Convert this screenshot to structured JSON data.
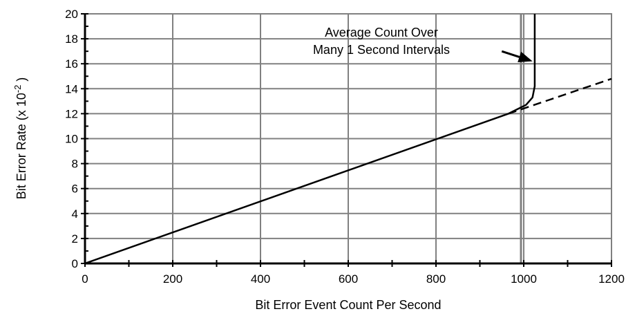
{
  "chart_data": {
    "type": "line",
    "xlabel": "Bit Error Event Count Per Second",
    "ylabel": {
      "text": "Bit Error Rate (x 10",
      "exponent": "-2",
      "suffix": " )"
    },
    "xlim": [
      0,
      1200
    ],
    "ylim": [
      0,
      20
    ],
    "x_ticks": [
      0,
      200,
      400,
      600,
      800,
      1000,
      1200
    ],
    "y_ticks": [
      0,
      2,
      4,
      6,
      8,
      10,
      12,
      14,
      16,
      18,
      20
    ],
    "grid": true,
    "vertical_marker_x": 1000,
    "series": [
      {
        "style": "solid",
        "points": [
          [
            0,
            0
          ],
          [
            965,
            12.0
          ],
          [
            1005,
            12.7
          ],
          [
            1020,
            13.3
          ],
          [
            1025,
            14.2
          ],
          [
            1025,
            20
          ]
        ]
      },
      {
        "style": "dashed",
        "points": [
          [
            965,
            12.0
          ],
          [
            1200,
            14.8
          ]
        ]
      }
    ],
    "annotation": {
      "lines": [
        "Average Count Over",
        "Many 1 Second Intervals"
      ],
      "arrow_from": [
        950,
        17.0
      ],
      "arrow_to": [
        1020,
        16.2
      ]
    },
    "colors": {
      "grid": "#808080",
      "line": "#000000",
      "marker": "#808080"
    }
  }
}
